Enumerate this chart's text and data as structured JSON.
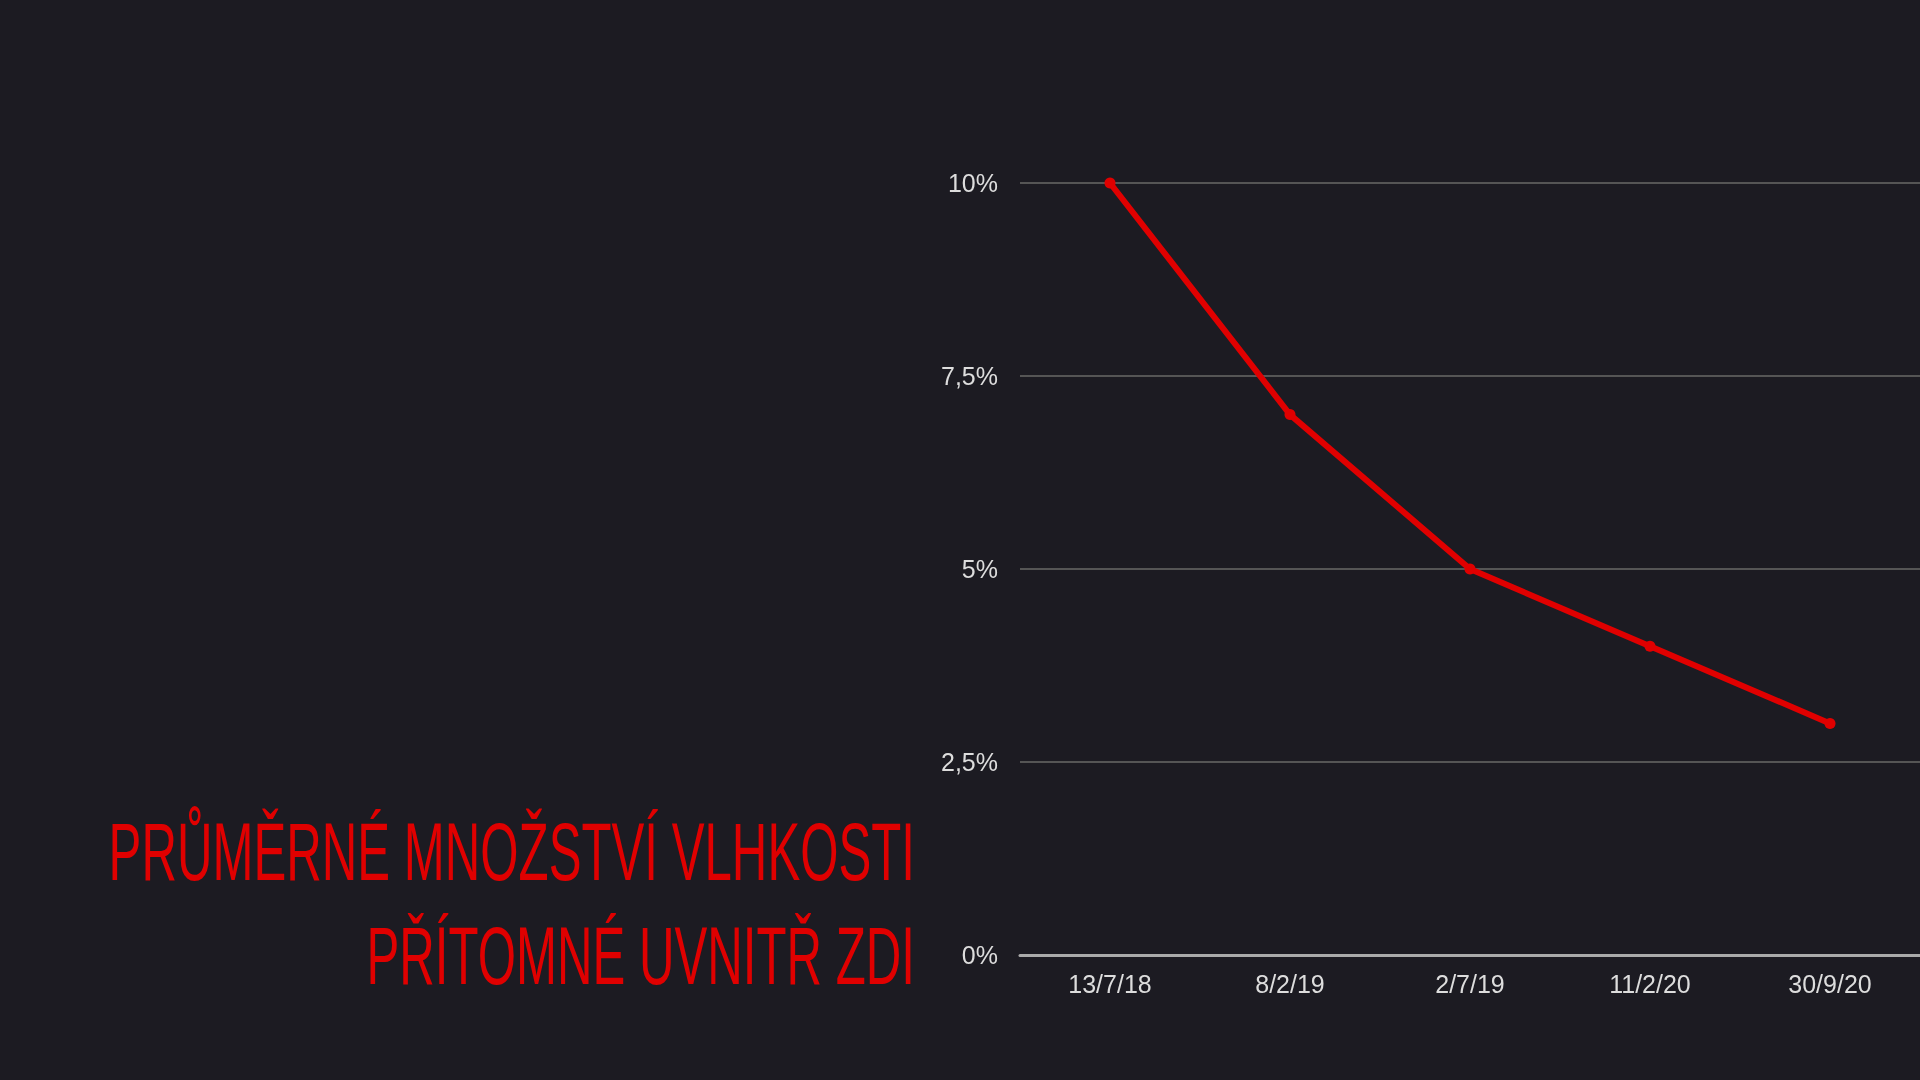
{
  "chart_data": {
    "type": "line",
    "title": "PRŮMĚRNÉ MNOŽSTVÍ VLHKOSTI PŘÍTOMNÉ UVNITŘ ZDI",
    "categories": [
      "13/7/18",
      "8/2/19",
      "2/7/19",
      "11/2/20",
      "30/9/20"
    ],
    "series": [
      {
        "color": "#e00000",
        "values": [
          10,
          7,
          5,
          4,
          3
        ]
      }
    ],
    "ylim": [
      0,
      10
    ],
    "yticks": [
      {
        "value": 0,
        "label": "0%"
      },
      {
        "value": 2.5,
        "label": "2,5%"
      },
      {
        "value": 5,
        "label": "5%"
      },
      {
        "value": 7.5,
        "label": "7,5%"
      },
      {
        "value": 10,
        "label": "10%"
      }
    ],
    "grid": "y",
    "marker": "circle",
    "line_style": "solid"
  }
}
